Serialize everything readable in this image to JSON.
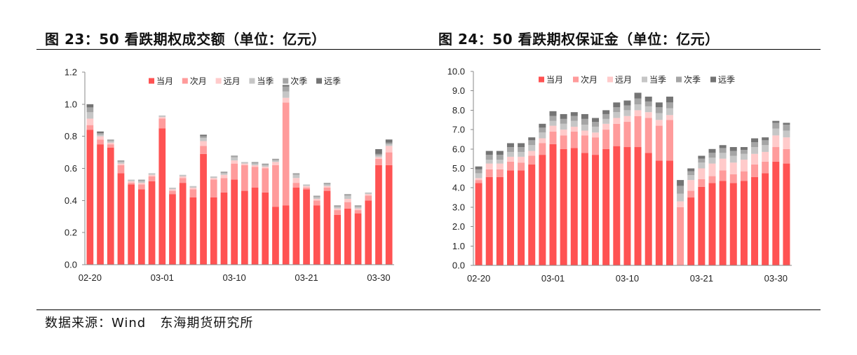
{
  "footer": {
    "source": "数据来源：Wind   东海期货研究所"
  },
  "chart_data": [
    {
      "type": "bar",
      "stacked": true,
      "title": "图 23：50 看跌期权成交额（单位：亿元）",
      "categories": [
        "02-20",
        "",
        "",
        "",
        "",
        "",
        "",
        "03-01",
        "",
        "",
        "",
        "",
        "",
        "",
        "03-10",
        "",
        "",
        "",
        "",
        "",
        "",
        "03-21",
        "",
        "",
        "",
        "",
        "",
        "",
        "03-30",
        ""
      ],
      "ylim": [
        0,
        1.2
      ],
      "ytick_labels": [
        "0.0",
        "0.2",
        "0.4",
        "0.6",
        "0.8",
        "1.0",
        "1.2"
      ],
      "grid": false,
      "legend": "top",
      "series": [
        {
          "name": "当月",
          "color": "#FF5252",
          "values": [
            0.84,
            0.75,
            0.73,
            0.57,
            0.5,
            0.47,
            0.52,
            0.85,
            0.44,
            0.51,
            0.42,
            0.69,
            0.42,
            0.45,
            0.53,
            0.46,
            0.48,
            0.45,
            0.36,
            0.37,
            0.48,
            0.47,
            0.37,
            0.46,
            0.31,
            0.35,
            0.32,
            0.4,
            0.62,
            0.62
          ]
        },
        {
          "name": "次月",
          "color": "#FF9B9B",
          "values": [
            0.03,
            0.03,
            0.02,
            0.05,
            0.01,
            0.03,
            0.03,
            0.06,
            0.02,
            0.03,
            0.05,
            0.05,
            0.11,
            0.09,
            0.1,
            0.16,
            0.13,
            0.15,
            0.26,
            0.64,
            0.03,
            0.01,
            0.03,
            0.02,
            0.03,
            0.04,
            0.02,
            0.03,
            0.04,
            0.08
          ]
        },
        {
          "name": "远月",
          "color": "#FFCACA",
          "values": [
            0.04,
            0.02,
            0.01,
            0.01,
            0.01,
            0.01,
            0.01,
            0.01,
            0.01,
            0.01,
            0.01,
            0.03,
            0.01,
            0.02,
            0.02,
            0.01,
            0.01,
            0.01,
            0.02,
            0.03,
            0.03,
            0.01,
            0.01,
            0.01,
            0.01,
            0.02,
            0.01,
            0.01,
            0.01,
            0.04
          ]
        },
        {
          "name": "当季",
          "color": "#C6C6C6",
          "values": [
            0.04,
            0.01,
            0.01,
            0.01,
            0.01,
            0.01,
            0.01,
            0.01,
            0.01,
            0.01,
            0.01,
            0.02,
            0.01,
            0.01,
            0.02,
            0.01,
            0.01,
            0.01,
            0.01,
            0.04,
            0.02,
            0.01,
            0.01,
            0.01,
            0.01,
            0.02,
            0.01,
            0.01,
            0.01,
            0.01
          ]
        },
        {
          "name": "次季",
          "color": "#A5A5A5",
          "values": [
            0.03,
            0.01,
            0.01,
            0.01,
            0.0,
            0.01,
            0.0,
            0.0,
            0.0,
            0.0,
            0.0,
            0.01,
            0.0,
            0.01,
            0.01,
            0.0,
            0.01,
            0.01,
            0.01,
            0.03,
            0.01,
            0.0,
            0.01,
            0.01,
            0.01,
            0.01,
            0.01,
            0.0,
            0.01,
            0.01
          ]
        },
        {
          "name": "远季",
          "color": "#747474",
          "values": [
            0.02,
            0.01,
            0.0,
            0.0,
            0.0,
            0.0,
            0.0,
            0.0,
            0.0,
            0.0,
            0.0,
            0.01,
            0.0,
            0.0,
            0.0,
            0.0,
            0.0,
            0.0,
            0.0,
            0.01,
            0.0,
            0.0,
            0.0,
            0.0,
            0.0,
            0.0,
            0.0,
            0.0,
            0.03,
            0.02
          ]
        }
      ]
    },
    {
      "type": "bar",
      "stacked": true,
      "title": "图 24：50 看跌期权保证金（单位：亿元）",
      "categories": [
        "02-20",
        "",
        "",
        "",
        "",
        "",
        "",
        "03-01",
        "",
        "",
        "",
        "",
        "",
        "",
        "03-10",
        "",
        "",
        "",
        "",
        "",
        "",
        "03-21",
        "",
        "",
        "",
        "",
        "",
        "",
        "03-30",
        ""
      ],
      "ylim": [
        0,
        10
      ],
      "ytick_labels": [
        "0.0",
        "1.0",
        "2.0",
        "3.0",
        "4.0",
        "5.0",
        "6.0",
        "7.0",
        "8.0",
        "9.0",
        "10.0"
      ],
      "grid": false,
      "legend": "top",
      "series": [
        {
          "name": "当月",
          "color": "#FF5252",
          "values": [
            4.25,
            4.55,
            4.55,
            4.9,
            4.9,
            5.2,
            5.7,
            6.25,
            6.0,
            6.05,
            5.8,
            5.7,
            6.0,
            6.15,
            6.1,
            6.1,
            5.8,
            5.4,
            5.4,
            0,
            3.5,
            4.05,
            4.25,
            4.35,
            4.25,
            4.35,
            4.55,
            4.75,
            5.35,
            5.25
          ]
        },
        {
          "name": "次月",
          "color": "#FF9B9B",
          "values": [
            0.15,
            0.4,
            0.4,
            0.45,
            0.4,
            0.45,
            0.6,
            0.65,
            0.7,
            0.85,
            0.9,
            0.9,
            1.0,
            1.15,
            1.3,
            1.6,
            1.8,
            1.8,
            2.1,
            3.0,
            0.35,
            0.4,
            0.35,
            0.55,
            0.45,
            0.5,
            0.65,
            0.6,
            0.75,
            0.75
          ]
        },
        {
          "name": "远月",
          "color": "#FFCACA",
          "values": [
            0.1,
            0.3,
            0.3,
            0.25,
            0.3,
            0.25,
            0.25,
            0.3,
            0.3,
            0.25,
            0.25,
            0.25,
            0.3,
            0.3,
            0.3,
            0.3,
            0.3,
            0.3,
            0.25,
            0.3,
            0.55,
            0.55,
            0.65,
            0.6,
            0.6,
            0.6,
            0.55,
            0.5,
            0.6,
            0.6
          ]
        },
        {
          "name": "当季",
          "color": "#C6C6C6",
          "values": [
            0.25,
            0.2,
            0.2,
            0.25,
            0.25,
            0.3,
            0.3,
            0.25,
            0.3,
            0.3,
            0.3,
            0.3,
            0.25,
            0.3,
            0.3,
            0.3,
            0.3,
            0.35,
            0.35,
            0.4,
            0.25,
            0.3,
            0.3,
            0.3,
            0.35,
            0.3,
            0.35,
            0.35,
            0.35,
            0.35
          ]
        },
        {
          "name": "次季",
          "color": "#A5A5A5",
          "values": [
            0.2,
            0.25,
            0.25,
            0.25,
            0.25,
            0.25,
            0.25,
            0.25,
            0.25,
            0.25,
            0.3,
            0.25,
            0.25,
            0.25,
            0.25,
            0.3,
            0.25,
            0.3,
            0.3,
            0.4,
            0.2,
            0.2,
            0.25,
            0.25,
            0.25,
            0.2,
            0.25,
            0.25,
            0.3,
            0.3
          ]
        },
        {
          "name": "远季",
          "color": "#747474",
          "values": [
            0.15,
            0.2,
            0.2,
            0.2,
            0.2,
            0.15,
            0.2,
            0.25,
            0.25,
            0.2,
            0.25,
            0.2,
            0.2,
            0.25,
            0.25,
            0.3,
            0.25,
            0.25,
            0.3,
            0.3,
            0.15,
            0.15,
            0.2,
            0.15,
            0.2,
            0.15,
            0.2,
            0.15,
            0.1,
            0.1
          ]
        }
      ]
    }
  ]
}
